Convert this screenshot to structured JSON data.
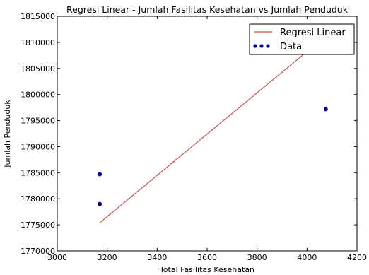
{
  "chart_data": {
    "type": "scatter",
    "title": "Regresi Linear - Jumlah Fasilitas Kesehatan vs Jumlah Penduduk",
    "xlabel": "Total Fasilitas Kesehatan",
    "ylabel": "Jumlah Penduduk",
    "xlim": [
      3000,
      4200
    ],
    "ylim": [
      1770000,
      1815000
    ],
    "x_ticks": [
      3000,
      3200,
      3400,
      3600,
      3800,
      4000,
      4200
    ],
    "y_ticks": [
      1770000,
      1775000,
      1780000,
      1785000,
      1790000,
      1795000,
      1800000,
      1805000,
      1810000,
      1815000
    ],
    "grid": false,
    "legend_position": "top-right",
    "series": [
      {
        "name": "Regresi Linear",
        "kind": "line",
        "color": "#c0504d",
        "x": [
          3170,
          4075
        ],
        "y": [
          1775400,
          1811200
        ]
      },
      {
        "name": "Data",
        "kind": "scatter",
        "color": "#00008b",
        "x": [
          3170,
          3170,
          4075
        ],
        "y": [
          1784700,
          1779000,
          1797200
        ]
      }
    ]
  }
}
